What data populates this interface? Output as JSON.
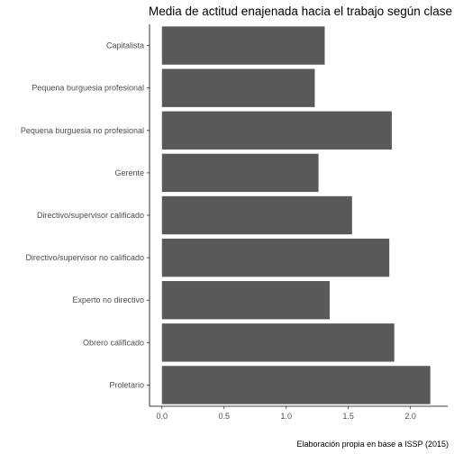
{
  "chart_data": {
    "type": "bar",
    "orientation": "horizontal",
    "title": "Media de actitud enajenada hacia el trabajo según clase social",
    "caption": "Elaboración propia en base a ISSP (2015)",
    "xlabel": "",
    "ylabel": "",
    "categories": [
      "Capitalista",
      "Pequena burguesia profesional",
      "Pequena burguesia no profesional",
      "Gerente",
      "Directivo/supervisor calificado",
      "Directivo/supervisor no calificado",
      "Experto no directivo",
      "Obrero calificado",
      "Proletario"
    ],
    "values": [
      1.31,
      1.23,
      1.85,
      1.26,
      1.53,
      1.83,
      1.35,
      1.87,
      2.16
    ],
    "xlim": [
      -0.1,
      2.3
    ],
    "xticks": [
      0.0,
      0.5,
      1.0,
      1.5,
      2.0
    ],
    "xtick_labels": [
      "0.0",
      "0.5",
      "1.0",
      "1.5",
      "2.0"
    ],
    "bar_color": "#595959",
    "grid": false,
    "legend": "none"
  }
}
